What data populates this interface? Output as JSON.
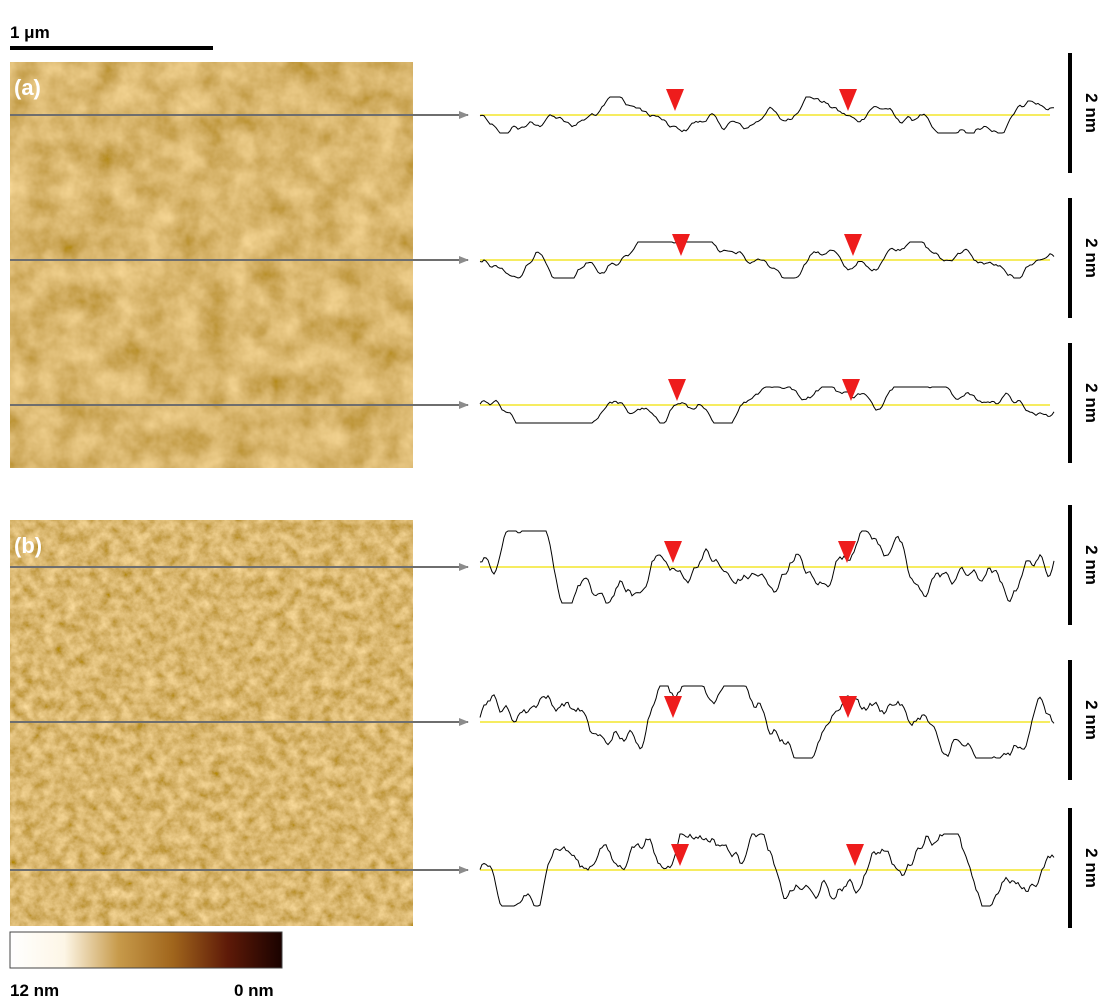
{
  "scale_bar": {
    "label": "1 μm"
  },
  "panels": [
    {
      "label": "(a)",
      "profiles": [
        {
          "scale": "2 nm"
        },
        {
          "scale": "2 nm"
        },
        {
          "scale": "2 nm"
        }
      ]
    },
    {
      "label": "(b)",
      "profiles": [
        {
          "scale": "2 nm"
        },
        {
          "scale": "2 nm"
        },
        {
          "scale": "2 nm"
        }
      ]
    }
  ],
  "colorbar": {
    "max_label": "12 nm",
    "min_label": "0 nm"
  }
}
